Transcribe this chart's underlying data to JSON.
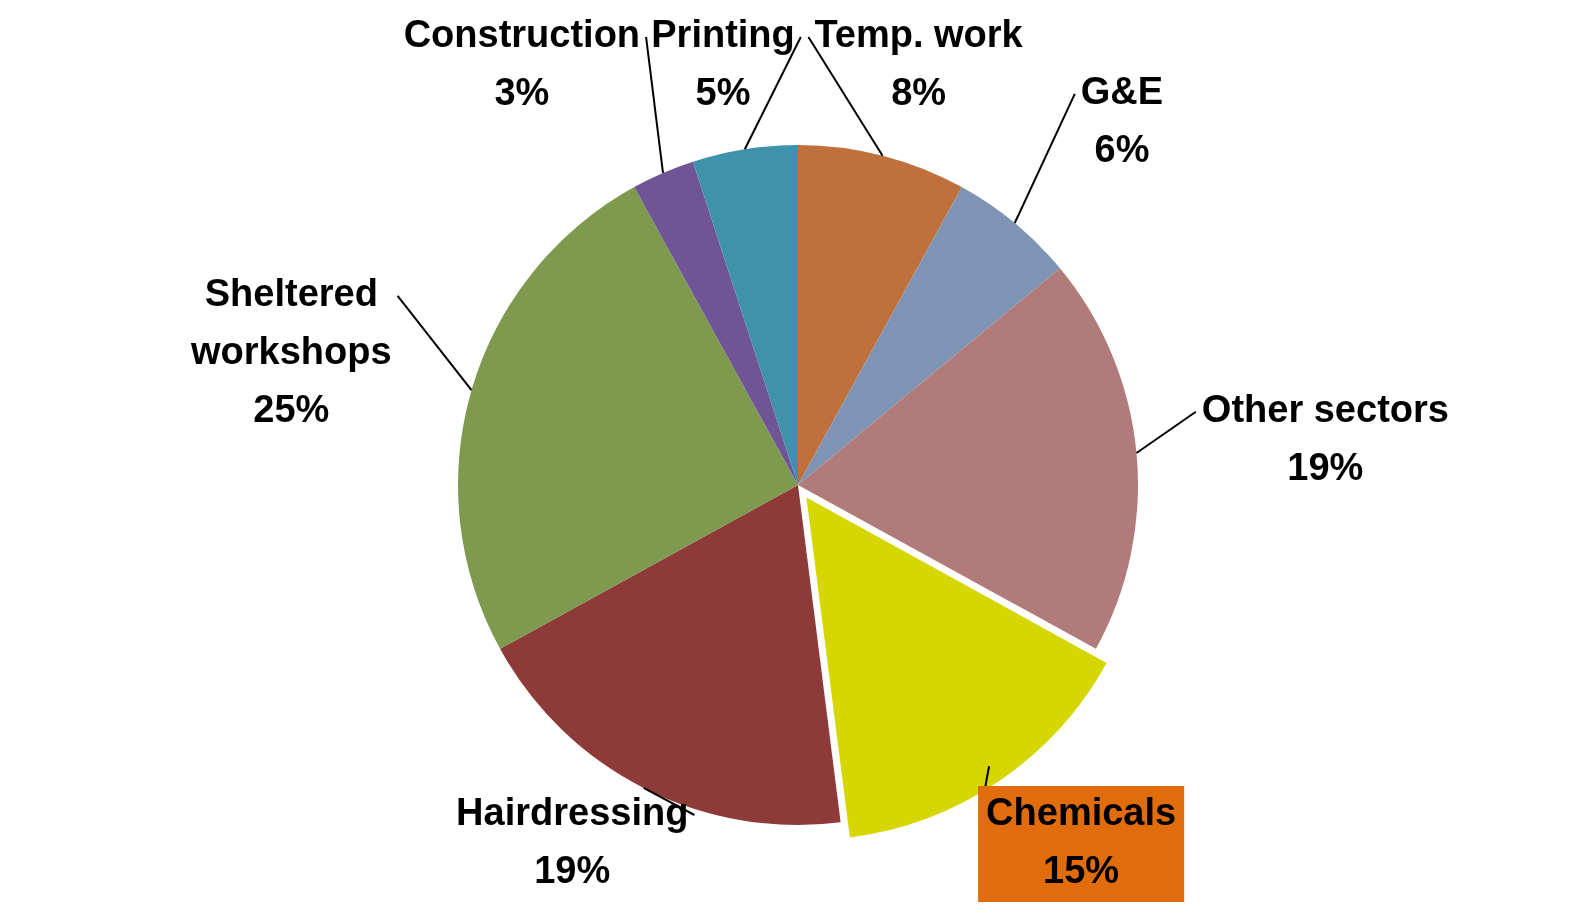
{
  "chart_data": {
    "type": "pie",
    "categories": [
      "Temp. work",
      "G&E",
      "Other sectors",
      "Chemicals",
      "Hairdressing",
      "Sheltered workshops",
      "Construction",
      "Printing"
    ],
    "values": [
      8,
      6,
      19,
      15,
      19,
      25,
      3,
      5
    ],
    "value_labels": [
      "8%",
      "6%",
      "19%",
      "15%",
      "19%",
      "25%",
      "3%",
      "5%"
    ],
    "colors": [
      "#c0703a",
      "#7f93b5",
      "#b07b78",
      "#d6d600",
      "#8e3a38",
      "#7d9a4e",
      "#6f5596",
      "#3f92ab"
    ],
    "data_labels": true,
    "legend": false
  }
}
